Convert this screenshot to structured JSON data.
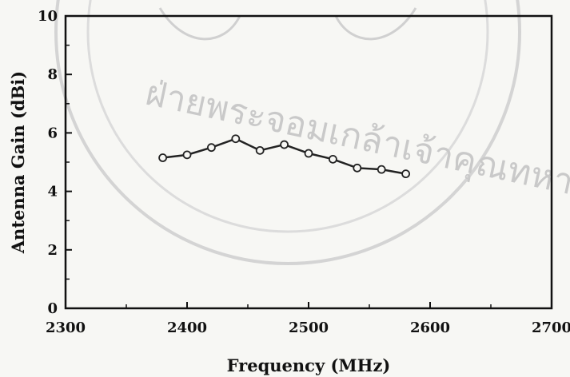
{
  "chart_data": {
    "type": "line",
    "title": "",
    "xlabel": "Frequency (MHz)",
    "ylabel": "Antenna Gain (dBi)",
    "xlim": [
      2300,
      2700
    ],
    "ylim": [
      0,
      10
    ],
    "x_ticks": [
      "2300",
      "2400",
      "2500",
      "2600",
      "2700"
    ],
    "y_ticks": [
      "0",
      "2",
      "4",
      "6",
      "8",
      "10"
    ],
    "grid": false,
    "legend": "none",
    "series": [
      {
        "x": [
          2380,
          2400,
          2420,
          2440,
          2460,
          2480,
          2500,
          2520,
          2540,
          2560,
          2580
        ],
        "y": [
          5.15,
          5.25,
          5.5,
          5.8,
          5.4,
          5.6,
          5.3,
          5.1,
          4.8,
          4.75,
          4.6
        ]
      }
    ]
  },
  "watermark": {
    "text": "ฝ่ายพระจอมเกล้าเจ้าคุณทหาร",
    "color": "#c9c9c9"
  }
}
